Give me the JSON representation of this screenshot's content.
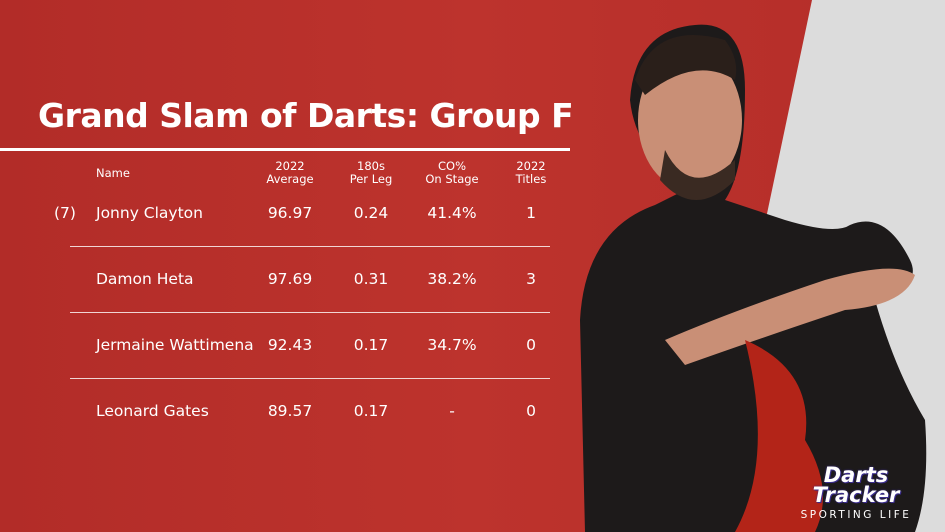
{
  "title": "Grand Slam of Darts: Group F",
  "headers": {
    "name": "Name",
    "average": [
      "2022",
      "Average"
    ],
    "per_leg": [
      "180s",
      "Per Leg"
    ],
    "checkout": [
      "CO%",
      "On Stage"
    ],
    "titles": [
      "2022",
      "Titles"
    ]
  },
  "rows": [
    {
      "seed": "(7)",
      "name": "Jonny Clayton",
      "average": "96.97",
      "per_leg": "0.24",
      "checkout": "41.4%",
      "titles": "1"
    },
    {
      "seed": "",
      "name": "Damon Heta",
      "average": "97.69",
      "per_leg": "0.31",
      "checkout": "38.2%",
      "titles": "3"
    },
    {
      "seed": "",
      "name": "Jermaine Wattimena",
      "average": "92.43",
      "per_leg": "0.17",
      "checkout": "34.7%",
      "titles": "0"
    },
    {
      "seed": "",
      "name": "Leonard Gates",
      "average": "89.57",
      "per_leg": "0.17",
      "checkout": "-",
      "titles": "0"
    }
  ],
  "logo": {
    "line1": "Darts",
    "line2": "Tracker",
    "line3": "SPORTING LIFE"
  },
  "colors": {
    "background": "#b9302b",
    "text": "#ffffff"
  }
}
